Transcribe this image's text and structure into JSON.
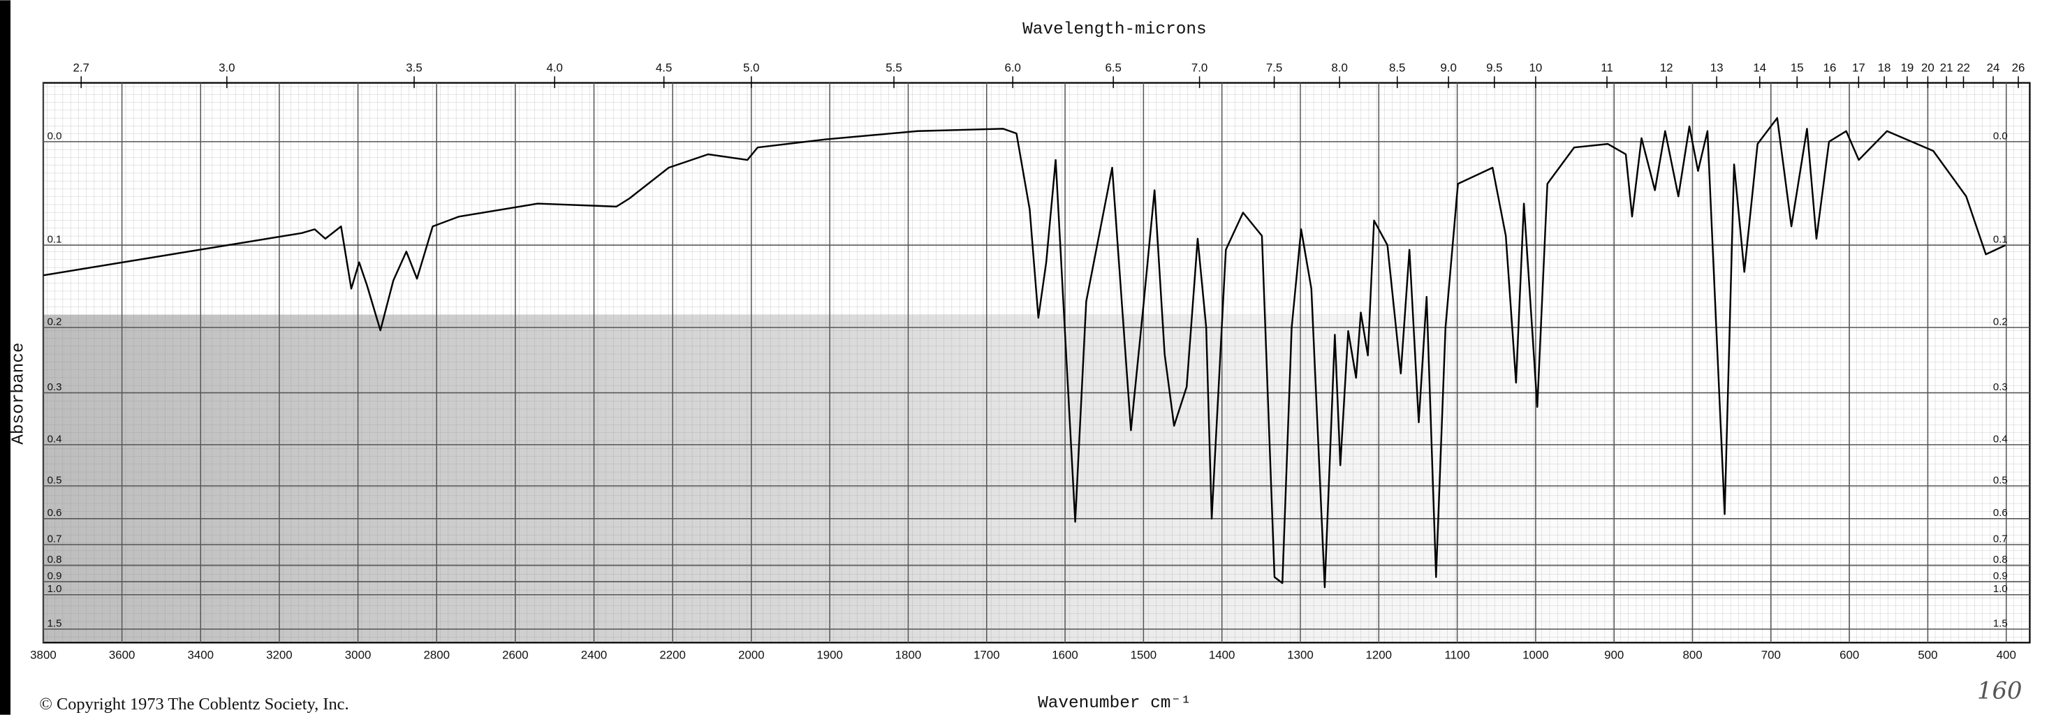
{
  "chart_data": {
    "type": "line",
    "title": "Wavelength-microns",
    "x_label": "Wavenumber cm⁻¹",
    "y_label": "Absorbance",
    "copyright": "© Copyright 1973  The Coblentz Society, Inc.",
    "annotation": "160",
    "color": "#000000",
    "grid": true,
    "y_scale": "transmittance",
    "x_scale_break": 2000,
    "xlim": [
      3800,
      370
    ],
    "ylim": [
      2,
      -0.048
    ],
    "xticks": [
      3800,
      3600,
      3400,
      3200,
      3000,
      2800,
      2600,
      2400,
      2200,
      2000,
      1900,
      1800,
      1700,
      1600,
      1500,
      1400,
      1300,
      1200,
      1100,
      1000,
      900,
      800,
      700,
      600,
      500,
      400
    ],
    "yticks": [
      {
        "value": 0,
        "label": "0.0"
      },
      0.1,
      0.2,
      0.3,
      0.4,
      0.5,
      0.6,
      0.7,
      0.8,
      0.9,
      {
        "value": 1,
        "label": "1.0"
      },
      1.5
    ],
    "top_ticks": [
      2.7,
      {
        "value": 3,
        "label": "3.0"
      },
      3.5,
      {
        "value": 4,
        "label": "4.0"
      },
      4.5,
      {
        "value": 5,
        "label": "5.0"
      },
      5.5,
      {
        "value": 6,
        "label": "6.0"
      },
      6.5,
      {
        "value": 7,
        "label": "7.0"
      },
      7.5,
      {
        "value": 8,
        "label": "8.0"
      },
      8.5,
      {
        "value": 9,
        "label": "9.0"
      },
      9.5,
      10,
      11,
      12,
      13,
      14,
      15,
      16,
      17,
      18,
      19,
      20,
      21,
      22,
      24,
      26
    ],
    "x": [
      3800,
      3143,
      3110,
      3083,
      3043,
      3017,
      2997,
      2977,
      2943,
      2910,
      2877,
      2850,
      2810,
      2743,
      2543,
      2343,
      2310,
      2210,
      2110,
      2010,
      1992,
      1905,
      1788,
      1679,
      1662,
      1645,
      1634,
      1624,
      1612,
      1600,
      1587,
      1573,
      1540,
      1516,
      1500,
      1486,
      1473,
      1461,
      1445,
      1431,
      1420,
      1413,
      1395,
      1373,
      1349,
      1333,
      1323,
      1311,
      1299,
      1286,
      1269,
      1256,
      1249,
      1239,
      1229,
      1223,
      1214,
      1206,
      1189,
      1172,
      1161,
      1149,
      1139,
      1127,
      1115,
      1099,
      1055,
      1038,
      1025,
      1015,
      998,
      985,
      951,
      908,
      885,
      877,
      865,
      848,
      835,
      818,
      804,
      793,
      781,
      759,
      747,
      734,
      717,
      692,
      674,
      654,
      642,
      626,
      604,
      588,
      552,
      493,
      451,
      426,
      401
    ],
    "values": [
      0.134,
      0.087,
      0.083,
      0.093,
      0.08,
      0.15,
      0.119,
      0.146,
      0.204,
      0.14,
      0.107,
      0.138,
      0.08,
      0.07,
      0.057,
      0.06,
      0.052,
      0.023,
      0.011,
      0.016,
      0.005,
      -0.002,
      -0.009,
      -0.011,
      -0.007,
      0.063,
      0.187,
      0.119,
      0.016,
      0.21,
      0.611,
      0.166,
      0.023,
      0.37,
      0.17,
      0.044,
      0.238,
      0.361,
      0.29,
      0.093,
      0.2,
      0.6,
      0.105,
      0.066,
      0.09,
      0.87,
      0.91,
      0.2,
      0.083,
      0.15,
      0.94,
      0.21,
      0.447,
      0.205,
      0.275,
      0.18,
      0.24,
      0.074,
      0.1,
      0.268,
      0.105,
      0.354,
      0.16,
      0.87,
      0.2,
      0.038,
      0.023,
      0.09,
      0.283,
      0.057,
      0.325,
      0.038,
      0.005,
      0.002,
      0.011,
      0.07,
      -0.003,
      0.044,
      -0.009,
      0.05,
      -0.013,
      0.026,
      -0.009,
      0.585,
      0.02,
      0.13,
      0.002,
      -0.02,
      0.08,
      -0.011,
      0.093,
      0,
      -0.009,
      0.016,
      -0.009,
      0.008,
      0.05,
      0.11,
      0.1
    ]
  }
}
